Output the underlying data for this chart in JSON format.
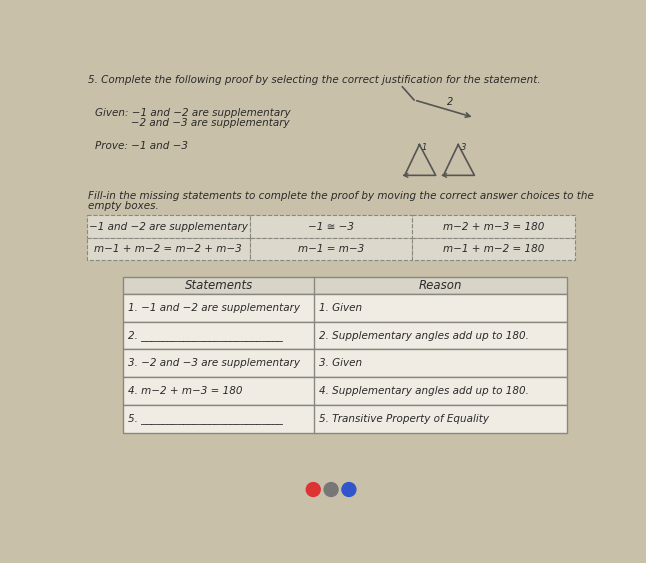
{
  "background_color": "#c8c0a8",
  "paper_color": "#e8e4dc",
  "title": "5. Complete the following proof by selecting the correct justification for the statement.",
  "given_line1": "Given: −1 and −2 are supplementary",
  "given_line2": "           −2 and −3 are supplementary",
  "prove_line": "Prove: −1 and −3",
  "fill_instruction1": "Fill-in the missing statements to complete the proof by moving the correct answer choices to the",
  "fill_instruction2": "empty boxes.",
  "answer_choices_row1": [
    "−1 and −2 are supplementary",
    "−1 ≅ −3",
    "m−2 + m−3 = 180"
  ],
  "answer_choices_row2": [
    "m−1 + m−2 = m−2 + m−3",
    "m−1 = m−3",
    "m−1 + m−2 = 180"
  ],
  "table_headers": [
    "Statements",
    "Reason"
  ],
  "table_rows": [
    [
      "1. −1 and −2 are supplementary",
      "1. Given"
    ],
    [
      "2. ___________________________",
      "2. Supplementary angles add up to 180."
    ],
    [
      "3. −2 and −3 are supplementary",
      "3. Given"
    ],
    [
      "4. m−2 + m−3 = 180",
      "4. Supplementary angles add up to 180."
    ],
    [
      "5. ___________________________",
      "5. Transitive Property of Equality"
    ]
  ],
  "text_color": "#2a2a2a",
  "line_color": "#555555",
  "table_header_bg": "#d8d4c8",
  "table_row_bg": "#f0ece4",
  "table_border": "#888880",
  "answer_box_bg": "#dcd8cc",
  "answer_box_border": "#888880"
}
